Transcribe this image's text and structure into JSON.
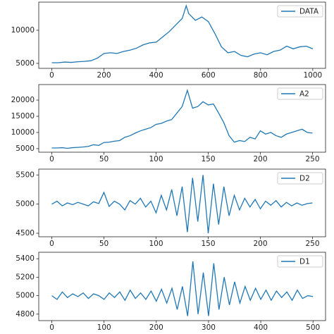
{
  "chart_data": [
    {
      "type": "line",
      "xlim": [
        -50,
        1049
      ],
      "ylim": [
        4250,
        14250
      ],
      "xticks": [
        0,
        200,
        400,
        600,
        800,
        1000
      ],
      "yticks": [
        5000,
        10000
      ],
      "legend": "upper right",
      "x": [
        0,
        25,
        50,
        75,
        100,
        125,
        150,
        175,
        200,
        225,
        250,
        275,
        300,
        325,
        350,
        375,
        400,
        425,
        450,
        475,
        500,
        515,
        525,
        550,
        575,
        600,
        625,
        650,
        675,
        700,
        725,
        750,
        775,
        800,
        825,
        850,
        875,
        900,
        925,
        950,
        975,
        1000
      ],
      "series": [
        {
          "name": "DATA",
          "color": "#1f77b4",
          "values": [
            5100,
            5100,
            5200,
            5150,
            5250,
            5300,
            5400,
            5800,
            6500,
            6600,
            6500,
            6800,
            7000,
            7300,
            7800,
            8100,
            8200,
            9000,
            9800,
            10800,
            11800,
            13700,
            12500,
            11500,
            12000,
            11300,
            9500,
            7500,
            6600,
            6800,
            6200,
            6000,
            6400,
            6600,
            6300,
            6800,
            7000,
            7600,
            7200,
            7500,
            7600,
            7200
          ]
        }
      ]
    },
    {
      "type": "line",
      "xlim": [
        -12.5,
        262.5
      ],
      "ylim": [
        3900,
        24800
      ],
      "xticks": [
        0,
        50,
        100,
        150,
        200,
        250
      ],
      "yticks": [
        5000,
        10000,
        15000,
        20000
      ],
      "legend": "upper right",
      "x": [
        0,
        5,
        10,
        15,
        20,
        25,
        30,
        35,
        40,
        45,
        50,
        55,
        60,
        65,
        70,
        75,
        80,
        85,
        90,
        95,
        100,
        105,
        110,
        115,
        120,
        125,
        130,
        135,
        140,
        145,
        150,
        155,
        160,
        165,
        170,
        175,
        180,
        185,
        190,
        195,
        200,
        205,
        210,
        215,
        220,
        225,
        230,
        235,
        240,
        245,
        250
      ],
      "series": [
        {
          "name": "A2",
          "color": "#1f77b4",
          "values": [
            5200,
            5200,
            5300,
            5100,
            5300,
            5400,
            5500,
            5700,
            6200,
            6000,
            6900,
            7000,
            7300,
            7500,
            8500,
            9000,
            9800,
            10500,
            11000,
            11500,
            12500,
            12800,
            13500,
            14000,
            16000,
            18000,
            23000,
            17500,
            18000,
            19500,
            18500,
            18800,
            16000,
            13000,
            9000,
            7000,
            7500,
            7200,
            8500,
            8000,
            10500,
            9500,
            10000,
            9000,
            8500,
            9500,
            10000,
            10500,
            11000,
            10000,
            9800
          ]
        }
      ]
    },
    {
      "type": "line",
      "xlim": [
        -12.5,
        262.5
      ],
      "ylim": [
        4440,
        5600
      ],
      "xticks": [
        0,
        50,
        100,
        150,
        200,
        250
      ],
      "yticks": [
        4500,
        5000,
        5500
      ],
      "legend": "upper right",
      "x": [
        0,
        5,
        10,
        15,
        20,
        25,
        30,
        35,
        40,
        45,
        50,
        55,
        60,
        65,
        70,
        75,
        80,
        85,
        90,
        95,
        100,
        105,
        110,
        115,
        120,
        125,
        130,
        135,
        140,
        145,
        150,
        155,
        160,
        165,
        170,
        175,
        180,
        185,
        190,
        195,
        200,
        205,
        210,
        215,
        220,
        225,
        230,
        235,
        240,
        245,
        250
      ],
      "series": [
        {
          "name": "D2",
          "color": "#1f77b4",
          "values": [
            5000,
            5050,
            4970,
            5020,
            4990,
            5030,
            5000,
            4970,
            5040,
            5010,
            5200,
            4960,
            5050,
            5000,
            4900,
            5060,
            5000,
            5100,
            4950,
            5050,
            4850,
            5150,
            4900,
            5250,
            4800,
            5300,
            4520,
            5450,
            4700,
            5500,
            4500,
            5350,
            4650,
            5300,
            4800,
            5150,
            4900,
            5100,
            4950,
            5080,
            4920,
            5050,
            4980,
            5060,
            4950,
            5030,
            4970,
            5020,
            4980,
            5010,
            5020
          ]
        }
      ]
    },
    {
      "type": "line",
      "xlim": [
        -25,
        524
      ],
      "ylim": [
        4730,
        5470
      ],
      "xticks": [
        0,
        100,
        200,
        300,
        400,
        500
      ],
      "yticks": [
        4800,
        5000,
        5200,
        5400
      ],
      "legend": "upper right",
      "x": [
        0,
        10,
        20,
        30,
        40,
        50,
        60,
        70,
        80,
        90,
        100,
        110,
        120,
        130,
        140,
        150,
        160,
        170,
        180,
        190,
        200,
        210,
        220,
        230,
        240,
        250,
        260,
        270,
        280,
        290,
        300,
        310,
        320,
        330,
        340,
        350,
        360,
        370,
        380,
        390,
        400,
        410,
        420,
        430,
        440,
        450,
        460,
        470,
        480,
        490,
        500
      ],
      "series": [
        {
          "name": "D1",
          "color": "#1f77b4",
          "values": [
            5000,
            4960,
            5040,
            4980,
            5020,
            4990,
            5030,
            4970,
            5020,
            5000,
            4960,
            5030,
            4980,
            5040,
            4950,
            5060,
            4970,
            5030,
            4960,
            5050,
            4940,
            5070,
            4920,
            5080,
            4850,
            5100,
            4780,
            5370,
            4800,
            5250,
            4780,
            5350,
            4850,
            5200,
            4900,
            5150,
            4920,
            5100,
            4950,
            5080,
            4960,
            5060,
            4950,
            5050,
            4980,
            5040,
            4950,
            5060,
            4970,
            5000,
            4990
          ]
        }
      ]
    }
  ]
}
